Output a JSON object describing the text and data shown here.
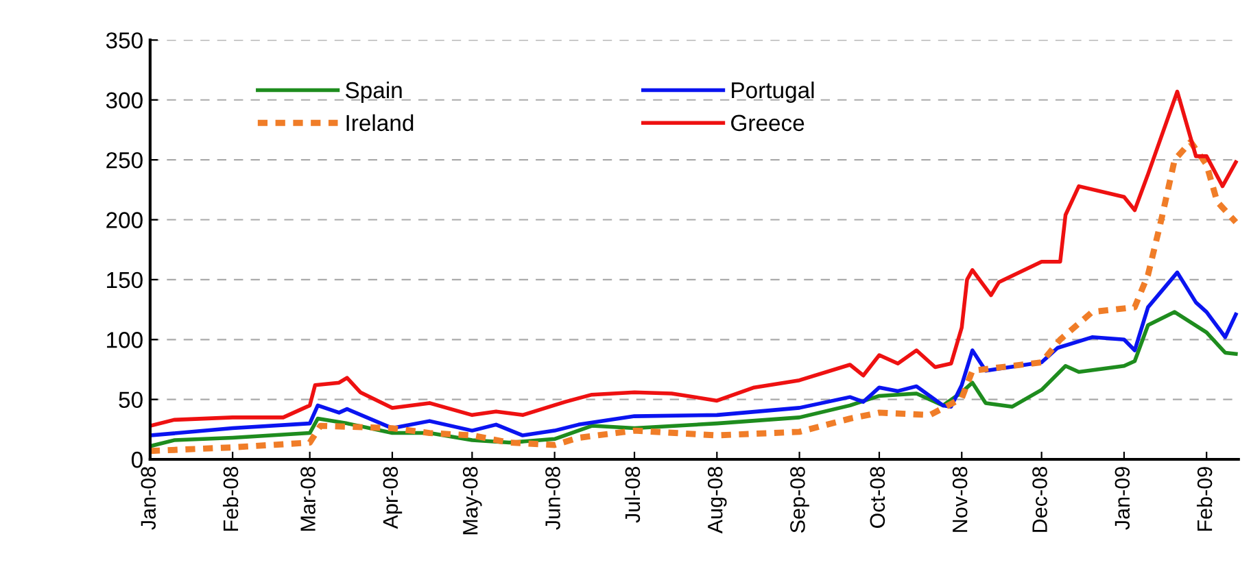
{
  "chart_data": {
    "type": "line",
    "xlim": [
      "2008-01-01",
      "2009-02-13"
    ],
    "xticks": [
      {
        "value": "2008-01-01",
        "label": "Jan-08"
      },
      {
        "value": "2008-02-01",
        "label": "Feb-08"
      },
      {
        "value": "2008-03-01",
        "label": "Mar-08"
      },
      {
        "value": "2008-04-01",
        "label": "Apr-08"
      },
      {
        "value": "2008-05-01",
        "label": "May-08"
      },
      {
        "value": "2008-06-01",
        "label": "Jun-08"
      },
      {
        "value": "2008-07-01",
        "label": "Jul-08"
      },
      {
        "value": "2008-08-01",
        "label": "Aug-08"
      },
      {
        "value": "2008-09-01",
        "label": "Sep-08"
      },
      {
        "value": "2008-10-01",
        "label": "Oct-08"
      },
      {
        "value": "2008-11-01",
        "label": "Nov-08"
      },
      {
        "value": "2008-12-01",
        "label": "Dec-08"
      },
      {
        "value": "2009-01-01",
        "label": "Jan-09"
      },
      {
        "value": "2009-02-01",
        "label": "Feb-09"
      }
    ],
    "ylim": [
      0,
      350
    ],
    "yticks": [
      0,
      50,
      100,
      150,
      200,
      250,
      300,
      350
    ],
    "grid": "y",
    "legend": "top left",
    "series": [
      {
        "name": "Spain",
        "color": "#1e8c1e",
        "line_style": "solid",
        "x": [
          "2008-01-01",
          "2008-01-10",
          "2008-02-01",
          "2008-03-01",
          "2008-03-04",
          "2008-03-15",
          "2008-04-01",
          "2008-04-15",
          "2008-05-01",
          "2008-05-15",
          "2008-06-01",
          "2008-06-15",
          "2008-07-01",
          "2008-08-01",
          "2008-09-01",
          "2008-09-20",
          "2008-10-01",
          "2008-10-15",
          "2008-10-25",
          "2008-11-01",
          "2008-11-05",
          "2008-11-10",
          "2008-11-20",
          "2008-12-01",
          "2008-12-10",
          "2008-12-15",
          "2009-01-01",
          "2009-01-05",
          "2009-01-10",
          "2009-01-20",
          "2009-02-01",
          "2009-02-08",
          "2009-02-12"
        ],
        "values": [
          11,
          16,
          18,
          22,
          34,
          30,
          22,
          22,
          16,
          14,
          17,
          28,
          26,
          30,
          35,
          45,
          53,
          55,
          45,
          56,
          64,
          47,
          44,
          58,
          78,
          73,
          78,
          82,
          112,
          123,
          106,
          89,
          88
        ]
      },
      {
        "name": "Portugal",
        "color": "#0a14f0",
        "line_style": "solid",
        "x": [
          "2008-01-01",
          "2008-02-01",
          "2008-03-01",
          "2008-03-04",
          "2008-03-12",
          "2008-03-15",
          "2008-04-01",
          "2008-04-15",
          "2008-05-01",
          "2008-05-10",
          "2008-05-20",
          "2008-06-01",
          "2008-06-10",
          "2008-07-01",
          "2008-08-01",
          "2008-09-01",
          "2008-09-20",
          "2008-09-25",
          "2008-10-01",
          "2008-10-08",
          "2008-10-15",
          "2008-10-25",
          "2008-10-28",
          "2008-11-01",
          "2008-11-05",
          "2008-11-10",
          "2008-12-01",
          "2008-12-07",
          "2008-12-20",
          "2009-01-01",
          "2009-01-05",
          "2009-01-10",
          "2009-01-21",
          "2009-01-28",
          "2009-02-01",
          "2009-02-08",
          "2009-02-12"
        ],
        "values": [
          20,
          26,
          30,
          45,
          39,
          42,
          26,
          32,
          24,
          29,
          20,
          24,
          29,
          36,
          37,
          43,
          52,
          48,
          60,
          57,
          61,
          45,
          44,
          62,
          91,
          74,
          81,
          93,
          102,
          100,
          91,
          127,
          156,
          131,
          123,
          102,
          121
        ]
      },
      {
        "name": "Ireland",
        "color": "#f07d28",
        "line_style": "dashed",
        "x": [
          "2008-01-01",
          "2008-02-01",
          "2008-03-01",
          "2008-03-05",
          "2008-04-01",
          "2008-04-15",
          "2008-05-01",
          "2008-05-15",
          "2008-06-01",
          "2008-06-10",
          "2008-07-01",
          "2008-08-01",
          "2008-09-01",
          "2008-09-20",
          "2008-10-01",
          "2008-10-20",
          "2008-11-01",
          "2008-11-05",
          "2008-12-01",
          "2008-12-08",
          "2008-12-20",
          "2009-01-05",
          "2009-01-10",
          "2009-01-15",
          "2009-01-20",
          "2009-01-26",
          "2009-02-01",
          "2009-02-05",
          "2009-02-12"
        ],
        "values": [
          7,
          10,
          14,
          28,
          26,
          22,
          20,
          14,
          12,
          18,
          24,
          20,
          23,
          34,
          39,
          37,
          51,
          74,
          81,
          100,
          123,
          127,
          154,
          200,
          250,
          265,
          246,
          215,
          198
        ]
      },
      {
        "name": "Greece",
        "color": "#ee1111",
        "line_style": "solid",
        "x": [
          "2008-01-01",
          "2008-01-10",
          "2008-02-01",
          "2008-02-20",
          "2008-03-01",
          "2008-03-03",
          "2008-03-12",
          "2008-03-15",
          "2008-03-20",
          "2008-04-01",
          "2008-04-15",
          "2008-05-01",
          "2008-05-10",
          "2008-05-20",
          "2008-06-05",
          "2008-06-15",
          "2008-07-01",
          "2008-07-15",
          "2008-08-01",
          "2008-08-15",
          "2008-09-01",
          "2008-09-20",
          "2008-09-25",
          "2008-10-01",
          "2008-10-08",
          "2008-10-15",
          "2008-10-22",
          "2008-10-28",
          "2008-11-01",
          "2008-11-03",
          "2008-11-05",
          "2008-11-12",
          "2008-11-15",
          "2008-12-01",
          "2008-12-08",
          "2008-12-10",
          "2008-12-15",
          "2009-01-01",
          "2009-01-05",
          "2009-01-10",
          "2009-01-21",
          "2009-01-28",
          "2009-02-01",
          "2009-02-07",
          "2009-02-12"
        ],
        "values": [
          28,
          33,
          35,
          35,
          45,
          62,
          64,
          68,
          56,
          43,
          47,
          37,
          40,
          37,
          48,
          54,
          56,
          55,
          49,
          60,
          66,
          79,
          70,
          87,
          80,
          91,
          77,
          80,
          110,
          150,
          158,
          137,
          148,
          165,
          165,
          204,
          228,
          219,
          208,
          238,
          307,
          253,
          253,
          228,
          248
        ]
      }
    ]
  }
}
